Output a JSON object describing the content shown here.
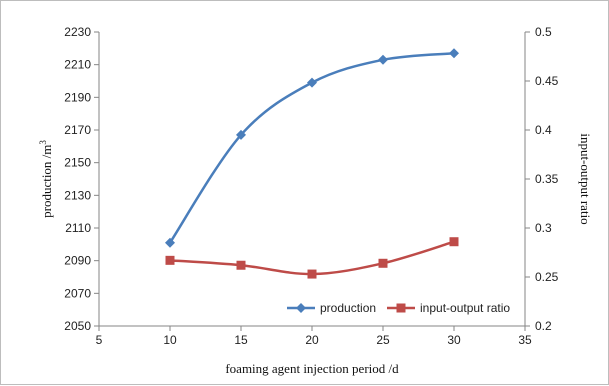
{
  "chart_data": {
    "type": "line",
    "x_label": "foaming agent injection period /d",
    "y_left_label": "production /m",
    "y_left_label_superscript": "3",
    "y_right_label": "input-output ratio",
    "x_range": [
      5,
      35
    ],
    "x_ticks": [
      "5",
      "10",
      "15",
      "20",
      "25",
      "30",
      "35"
    ],
    "y_left_range": [
      2050,
      2230
    ],
    "y_left_ticks": [
      "2050",
      "2070",
      "2090",
      "2110",
      "2130",
      "2150",
      "2170",
      "2190",
      "2210",
      "2230"
    ],
    "y_right_range": [
      0.2,
      0.5
    ],
    "y_right_ticks": [
      "0.2",
      "0.25",
      "0.3",
      "0.35",
      "0.4",
      "0.45",
      "0.5"
    ],
    "grid": false,
    "legend_position": "bottom-right",
    "series": [
      {
        "name": "production",
        "axis": "left",
        "color": "#4a7ebb",
        "marker": "diamond",
        "x": [
          10,
          15,
          20,
          25,
          30
        ],
        "values": [
          2101,
          2167,
          2199,
          2213,
          2217
        ]
      },
      {
        "name": "input-output ratio",
        "axis": "right",
        "color": "#be4b48",
        "marker": "square",
        "x": [
          10,
          15,
          20,
          25,
          30
        ],
        "values": [
          0.267,
          0.262,
          0.253,
          0.264,
          0.286
        ]
      }
    ]
  }
}
